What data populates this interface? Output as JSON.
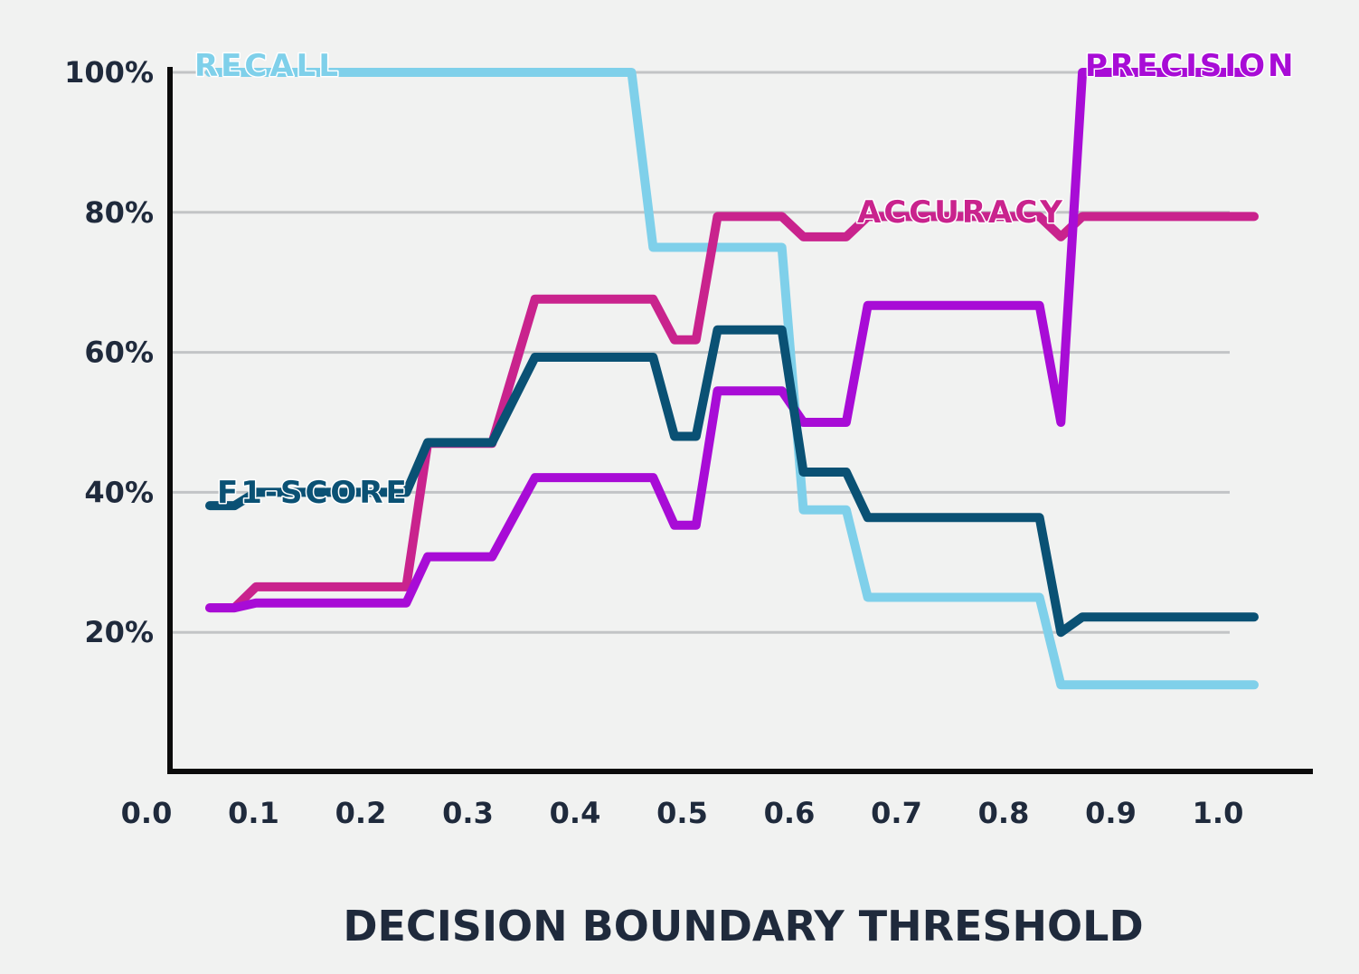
{
  "chart_data": {
    "type": "line",
    "xlabel": "DECISION BOUNDARY THRESHOLD",
    "ylabel": "",
    "xlim": [
      0.0,
      1.0
    ],
    "ylim": [
      0,
      100
    ],
    "x_tick_labels": [
      "0.0",
      "0.1",
      "0.2",
      "0.3",
      "0.4",
      "0.5",
      "0.6",
      "0.7",
      "0.8",
      "0.9",
      "1.0"
    ],
    "y_tick_labels": [
      "20%",
      "40%",
      "60%",
      "80%",
      "100%"
    ],
    "grid": true,
    "legend": "inline labels",
    "series": [
      {
        "name": "RECALL",
        "color": "#7fd0ea",
        "x": [
          0.027,
          0.42,
          0.44,
          0.46,
          0.48,
          0.5,
          0.52,
          0.54,
          0.56,
          0.58,
          0.6,
          0.62,
          0.64,
          0.66,
          0.68,
          0.7,
          0.72,
          0.74,
          0.76,
          0.78,
          0.8,
          0.82,
          0.84,
          0.86,
          0.88,
          0.9,
          0.92,
          0.94,
          0.96,
          0.98,
          1.0
        ],
        "values": [
          100,
          100,
          75,
          75,
          75,
          75,
          75,
          75,
          75,
          37.5,
          37.5,
          37.5,
          25,
          25,
          25,
          25,
          25,
          25,
          25,
          25,
          25,
          12.5,
          12.5,
          12.5,
          12.5,
          12.5,
          12.5,
          12.5,
          12.5,
          12.5,
          12.5
        ]
      },
      {
        "name": "PRECISION",
        "color": "#a80cd6",
        "x": [
          0.027,
          0.05,
          0.07,
          0.21,
          0.23,
          0.29,
          0.33,
          0.44,
          0.46,
          0.48,
          0.5,
          0.52,
          0.54,
          0.56,
          0.58,
          0.6,
          0.62,
          0.64,
          0.66,
          0.68,
          0.7,
          0.72,
          0.74,
          0.76,
          0.78,
          0.8,
          0.82,
          0.84,
          0.86,
          0.88,
          0.9,
          0.92,
          0.94,
          0.96,
          0.98,
          1.0
        ],
        "values": [
          23.5,
          23.5,
          24.2,
          24.2,
          30.8,
          30.8,
          42.1,
          42.1,
          35.3,
          35.3,
          54.5,
          54.5,
          54.5,
          54.5,
          50,
          50,
          50,
          66.7,
          66.7,
          66.7,
          66.7,
          66.7,
          66.7,
          66.7,
          66.7,
          66.7,
          50,
          100,
          100,
          100,
          100,
          100,
          100,
          100,
          100,
          100
        ]
      },
      {
        "name": "ACCURACY",
        "color": "#c9238d",
        "x": [
          0.027,
          0.05,
          0.07,
          0.21,
          0.23,
          0.29,
          0.33,
          0.44,
          0.46,
          0.48,
          0.5,
          0.52,
          0.54,
          0.56,
          0.58,
          0.6,
          0.62,
          0.64,
          0.66,
          0.68,
          0.7,
          0.72,
          0.74,
          0.76,
          0.78,
          0.8,
          0.82,
          0.84,
          0.86,
          0.88,
          0.9,
          0.92,
          0.94,
          0.96,
          0.98,
          1.0
        ],
        "values": [
          23.5,
          23.5,
          26.5,
          26.5,
          47,
          47,
          67.6,
          67.6,
          61.8,
          61.8,
          79.4,
          79.4,
          79.4,
          79.4,
          76.5,
          76.5,
          76.5,
          79.4,
          79.4,
          79.4,
          79.4,
          79.4,
          79.4,
          79.4,
          79.4,
          79.4,
          76.5,
          79.4,
          79.4,
          79.4,
          79.4,
          79.4,
          79.4,
          79.4,
          79.4,
          79.4
        ]
      },
      {
        "name": "F1-SCORE",
        "color": "#0a5174",
        "x": [
          0.027,
          0.05,
          0.07,
          0.21,
          0.23,
          0.29,
          0.33,
          0.44,
          0.46,
          0.48,
          0.5,
          0.52,
          0.54,
          0.56,
          0.58,
          0.6,
          0.62,
          0.64,
          0.66,
          0.68,
          0.7,
          0.72,
          0.74,
          0.76,
          0.78,
          0.8,
          0.82,
          0.84,
          0.86,
          0.88,
          0.9,
          0.92,
          0.94,
          0.96,
          0.98,
          1.0
        ],
        "values": [
          38.1,
          38.1,
          40,
          40,
          47.1,
          47.1,
          59.3,
          59.3,
          48,
          48,
          63.2,
          63.2,
          63.2,
          63.2,
          42.9,
          42.9,
          42.9,
          36.4,
          36.4,
          36.4,
          36.4,
          36.4,
          36.4,
          36.4,
          36.4,
          36.4,
          20,
          22.2,
          22.2,
          22.2,
          22.2,
          22.2,
          22.2,
          22.2,
          22.2,
          22.2
        ]
      }
    ]
  }
}
